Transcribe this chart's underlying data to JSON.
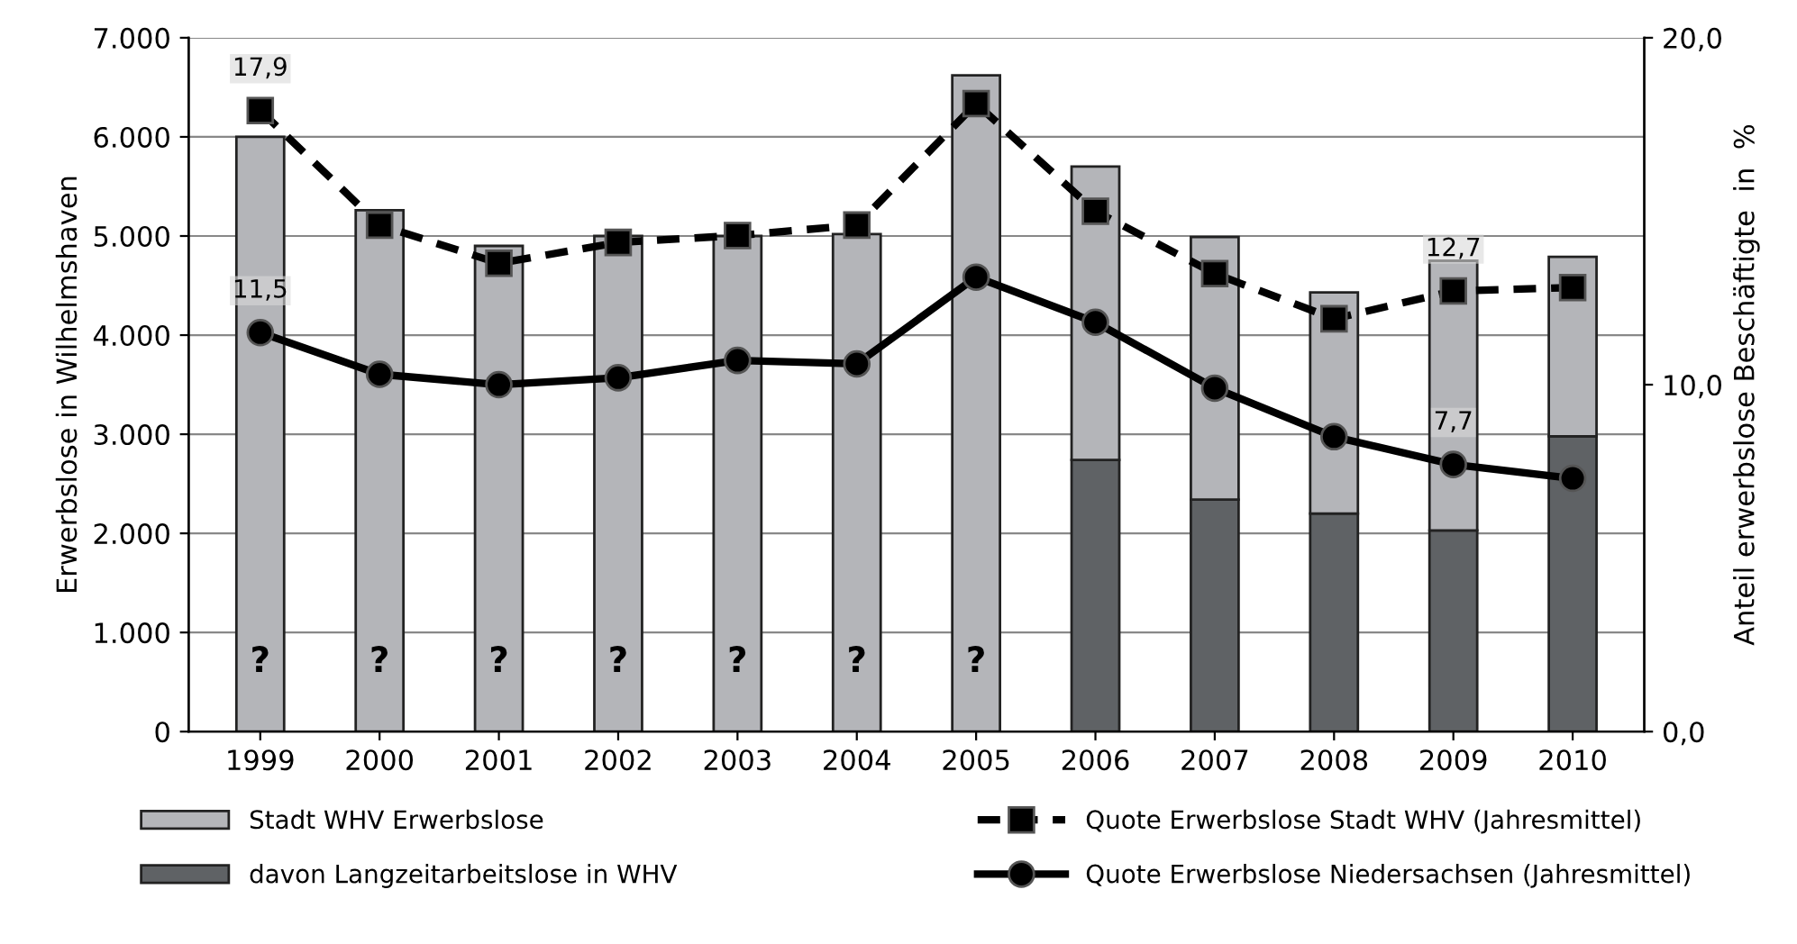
{
  "chart_data": {
    "type": "bar",
    "stacked": true,
    "categories": [
      "1999",
      "2000",
      "2001",
      "2002",
      "2003",
      "2004",
      "2005",
      "2006",
      "2007",
      "2008",
      "2009",
      "2010"
    ],
    "ylabel": "Erwerbslose in Wilhelmshaven",
    "y2label": "Anteil erwerbslose Beschäftigte  in  %",
    "series": [
      {
        "name": "davon Langzeitarbeitslose in WHV",
        "color": "#5f6265",
        "values": [
          null,
          null,
          null,
          null,
          null,
          null,
          null,
          2740,
          2340,
          2200,
          2030,
          2980
        ]
      },
      {
        "name": "Stadt WHV Erwerbslose",
        "color": "#b4b5b9",
        "values": [
          6000,
          5260,
          4900,
          5000,
          5000,
          5020,
          6620,
          2960,
          2650,
          2230,
          2720,
          1810
        ]
      },
      {
        "name": "Quote Erwerbslose Stadt WHV (Jahresmittel)",
        "type": "line",
        "axis": "y2",
        "color": "#000000",
        "marker": "square",
        "line_style": "dashed",
        "values": [
          17.9,
          14.6,
          13.5,
          14.1,
          14.3,
          14.6,
          18.1,
          15.0,
          13.2,
          11.9,
          12.7,
          12.8
        ],
        "value_labels": [
          "17,9",
          null,
          null,
          null,
          null,
          null,
          null,
          null,
          null,
          null,
          "12,7",
          null
        ]
      },
      {
        "name": "Quote Erwerbslose Niedersachsen (Jahresmittel)",
        "type": "line",
        "axis": "y2",
        "color": "#000000",
        "marker": "circle",
        "line_style": "solid",
        "values": [
          11.5,
          10.3,
          10.0,
          10.2,
          10.7,
          10.6,
          13.1,
          11.8,
          9.9,
          8.5,
          7.7,
          7.3
        ],
        "value_labels": [
          "11,5",
          null,
          null,
          null,
          null,
          null,
          null,
          null,
          null,
          null,
          "7,7",
          null
        ]
      }
    ],
    "ylim": [
      0,
      7000
    ],
    "yticks": [
      0,
      {
        "value": 1000,
        "label": "1.000"
      },
      {
        "value": 2000,
        "label": "2.000"
      },
      {
        "value": 3000,
        "label": "3.000"
      },
      {
        "value": 4000,
        "label": "4.000"
      },
      {
        "value": 5000,
        "label": "5.000"
      },
      {
        "value": 6000,
        "label": "6.000"
      },
      {
        "value": 7000,
        "label": "7.000"
      }
    ],
    "y2lim": [
      0,
      20
    ],
    "y2ticks": [
      {
        "value": 0,
        "label": "0,0"
      },
      {
        "value": 10,
        "label": "10,0"
      },
      {
        "value": 20,
        "label": "20,0"
      }
    ],
    "annotations": [
      "?",
      "?",
      "?",
      "?",
      "?",
      "?",
      "?"
    ],
    "grid": "y",
    "legend": "bottom"
  }
}
